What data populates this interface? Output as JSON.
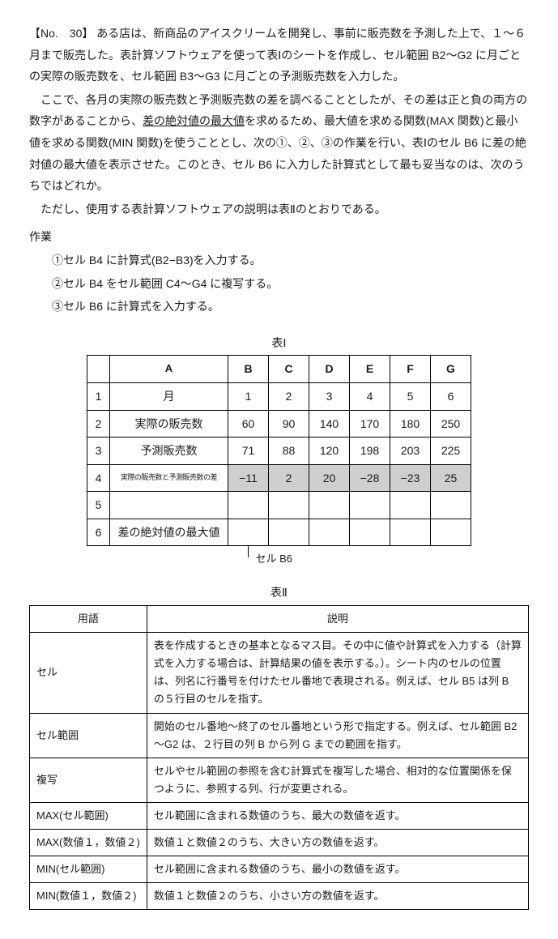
{
  "q_no": "【No.　30】",
  "p1a": "ある店は、新商品のアイスクリームを開発し、事前に販売数を予測した上で、１～６月まで販売した。表計算ソフトウェアを使って表Ⅰのシートを作成し、セル範囲 B2～G2 に月ごとの実際の販売数を、セル範囲 B3～G3 に月ごとの予測販売数を入力した。",
  "p2a": "ここで、各月の実際の販売数と予測販売数の差を調べることとしたが、その差は正と負の両方の数字があることから、",
  "p2u": "差の絶対値の最大値",
  "p2b": "を求めるため、最大値を求める関数(MAX 関数)と最小値を求める関数(MIN 関数)を使うこととし、次の①、②、③の作業を行い、表Ⅰのセル B6 に差の絶対値の最大値を表示させた。このとき、セル B6 に入力した計算式として最も妥当なのは、次のうちではどれか。",
  "p3": "ただし、使用する表計算ソフトウェアの説明は表Ⅱのとおりである。",
  "work_label": "作業",
  "step1": "①セル B4 に計算式(B2−B3)を入力する。",
  "step2": "②セル B4 をセル範囲 C4～G4 に複写する。",
  "step3": "③セル B6 に計算式を入力する。",
  "t1_caption": "表Ⅰ",
  "t1": {
    "cols": [
      "A",
      "B",
      "C",
      "D",
      "E",
      "F",
      "G"
    ],
    "rows": [
      "1",
      "2",
      "3",
      "4",
      "5",
      "6"
    ],
    "A": [
      "月",
      "実際の販売数",
      "予測販売数",
      "実際の販売数と予測販売数の差",
      "",
      "差の絶対値の最大値"
    ],
    "r1": [
      "1",
      "2",
      "3",
      "4",
      "5",
      "6"
    ],
    "r2": [
      "60",
      "90",
      "140",
      "170",
      "180",
      "250"
    ],
    "r3": [
      "71",
      "88",
      "120",
      "198",
      "203",
      "225"
    ],
    "r4": [
      "−11",
      "2",
      "20",
      "−28",
      "−23",
      "25"
    ]
  },
  "ptr_label": "セル B6",
  "t2_caption": "表Ⅱ",
  "t2_head": [
    "用語",
    "説明"
  ],
  "t2_rows": [
    {
      "term": "セル",
      "desc": "表を作成するときの基本となるマス目。その中に値や計算式を入力する（計算式を入力する場合は、計算結果の値を表示する。）。シート内のセルの位置は、列名に行番号を付けたセル番地で表現される。例えば、セル B5 は列 B の５行目のセルを指す。"
    },
    {
      "term": "セル範囲",
      "desc": "開始のセル番地～終了のセル番地という形で指定する。例えば、セル範囲 B2～G2 は、２行目の列 B から列 G までの範囲を指す。"
    },
    {
      "term": "複写",
      "desc": "セルやセル範囲の参照を含む計算式を複写した場合、相対的な位置関係を保つように、参照する列、行が変更される。"
    },
    {
      "term": "MAX(セル範囲)",
      "desc": "セル範囲に含まれる数値のうち、最大の数値を返す。"
    },
    {
      "term": "MAX(数値１，数値２)",
      "desc": "数値１と数値２のうち、大きい方の数値を返す。"
    },
    {
      "term": "MIN(セル範囲)",
      "desc": "セル範囲に含まれる数値のうち、最小の数値を返す。"
    },
    {
      "term": "MIN(数値１，数値２)",
      "desc": "数値１と数値２のうち、小さい方の数値を返す。"
    }
  ]
}
